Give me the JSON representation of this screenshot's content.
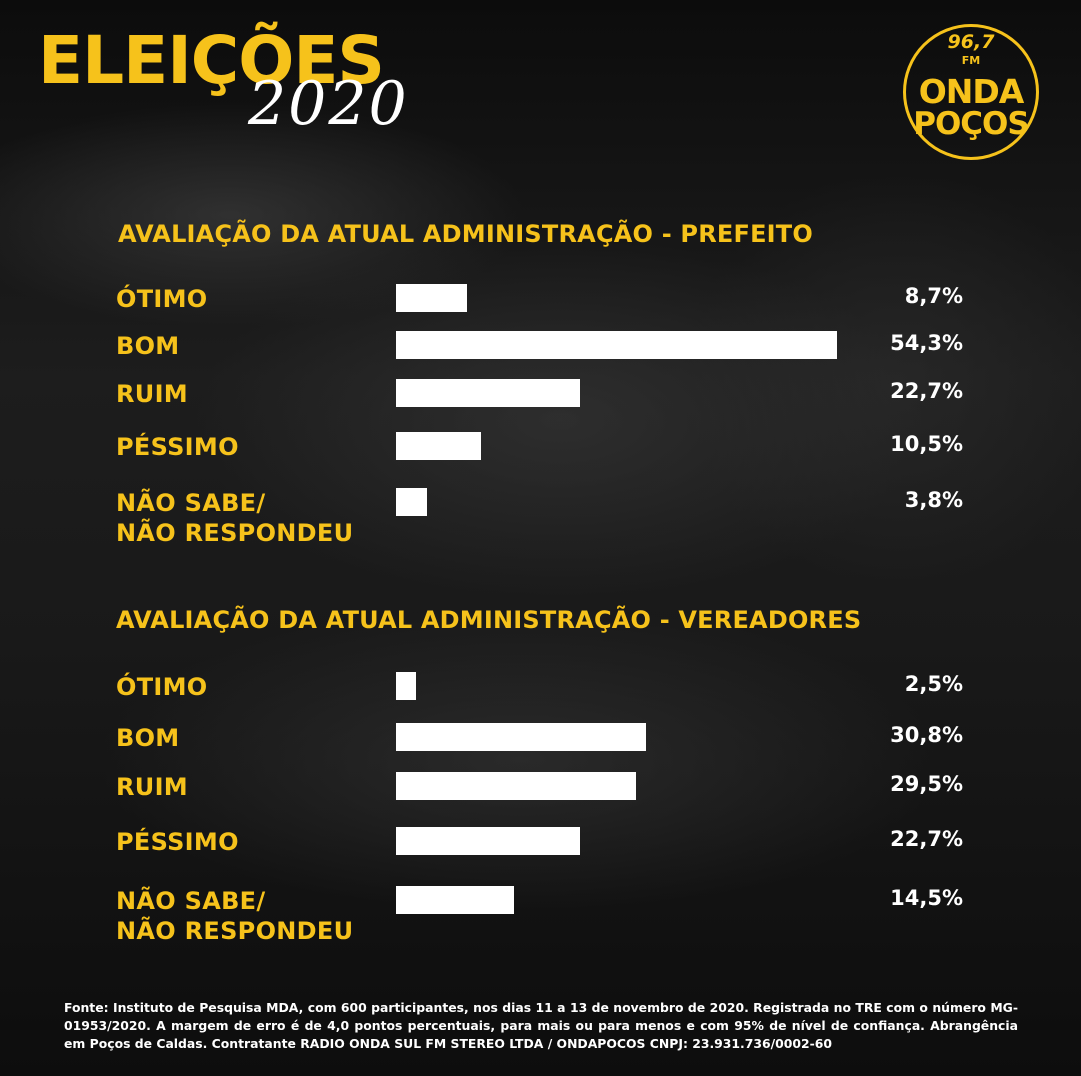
{
  "header": {
    "title": "ELEIÇÕES",
    "year": "2020"
  },
  "logo": {
    "frequency": "96,7",
    "band": "FM",
    "name_line1": "ONDA",
    "name_line2": "POÇOS",
    "color": "#f6c21b"
  },
  "colors": {
    "accent": "#f6c21b",
    "bar": "#ffffff",
    "background": "#121212"
  },
  "chart_data": [
    {
      "type": "bar",
      "orientation": "horizontal",
      "title": "AVALIAÇÃO DA ATUAL ADMINISTRAÇÃO - PREFEITO",
      "categories": [
        "ÓTIMO",
        "BOM",
        "RUIM",
        "PÉSSIMO",
        "NÃO SABE/\nNÃO RESPONDEU"
      ],
      "values": [
        8.7,
        54.3,
        22.7,
        10.5,
        3.8
      ],
      "value_labels": [
        "8,7%",
        "54,3%",
        "22,7%",
        "10,5%",
        "3,8%"
      ],
      "xlim": [
        0,
        54.3
      ],
      "grid": false,
      "legend": "none"
    },
    {
      "type": "bar",
      "orientation": "horizontal",
      "title": "AVALIAÇÃO DA ATUAL ADMINISTRAÇÃO - VEREADORES",
      "categories": [
        "ÓTIMO",
        "BOM",
        "RUIM",
        "PÉSSIMO",
        "NÃO SABE/\nNÃO RESPONDEU"
      ],
      "values": [
        2.5,
        30.8,
        29.5,
        22.7,
        14.5
      ],
      "value_labels": [
        "2,5%",
        "30,8%",
        "29,5%",
        "22,7%",
        "14,5%"
      ],
      "xlim": [
        0,
        54.3
      ],
      "grid": false,
      "legend": "none"
    }
  ],
  "footer": {
    "source": "Fonte: Instituto de Pesquisa MDA, com 600 participantes, nos dias 11 a 13 de novembro de 2020. Registrada no TRE com o número MG-01953/2020. A margem de erro é de 4,0 pontos percentuais, para mais ou para menos e com 95% de nível de confiança. Abrangência em Poços de Caldas. Contratante RADIO ONDA SUL FM STEREO LTDA / ONDAPOCOS CNPJ: 23.931.736/0002-60"
  }
}
